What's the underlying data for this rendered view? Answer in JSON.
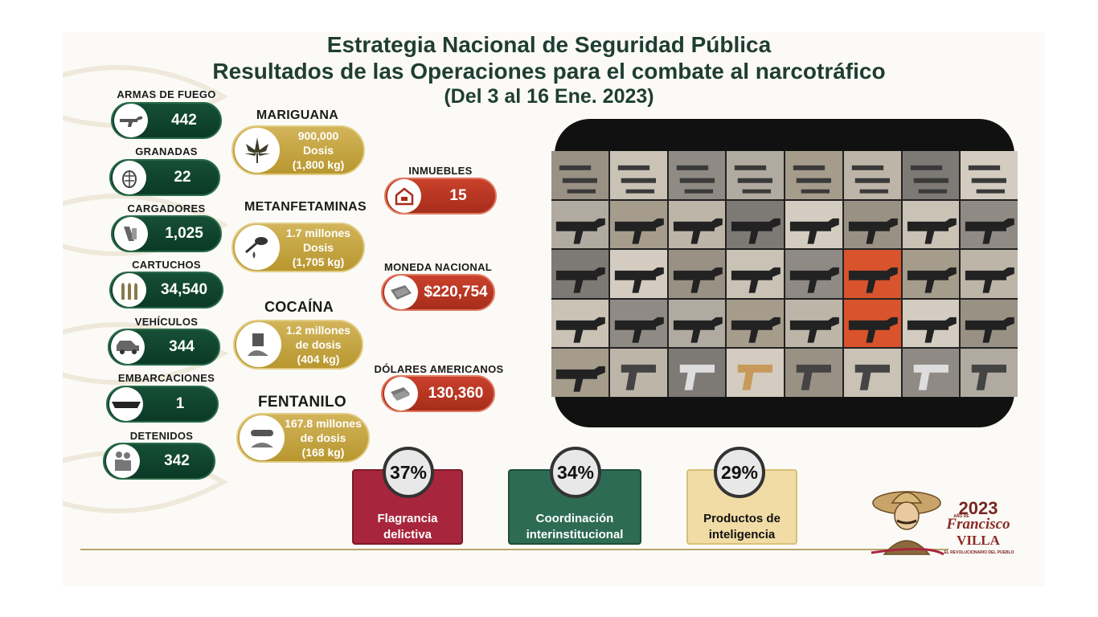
{
  "header": {
    "title": "Estrategia Nacional de Seguridad Pública",
    "subtitle": "Resultados de las Operaciones para el combate al narcotráfico",
    "period": "(Del 3 al 16 Ene. 2023)"
  },
  "left_stats": [
    {
      "label": "ARMAS DE FUEGO",
      "value": "442",
      "icon": "rifle-icon"
    },
    {
      "label": "GRANADAS",
      "value": "22",
      "icon": "grenade-icon"
    },
    {
      "label": "CARGADORES",
      "value": "1,025",
      "icon": "magazine-icon"
    },
    {
      "label": "CARTUCHOS",
      "value": "34,540",
      "icon": "bullets-icon"
    },
    {
      "label": "VEHÍCULOS",
      "value": "344",
      "icon": "vehicle-icon"
    },
    {
      "label": "EMBARCACIONES",
      "value": "1",
      "icon": "boat-icon"
    },
    {
      "label": "DETENIDOS",
      "value": "342",
      "icon": "people-icon"
    }
  ],
  "drugs": [
    {
      "label": "MARIGUANA",
      "lines": [
        "900,000",
        "Dosis",
        "(1,800 kg)"
      ],
      "icon": "cannabis-leaf-icon"
    },
    {
      "label": "METANFETAMINAS",
      "lines": [
        "1.7 millones",
        "Dosis",
        "(1,705 kg)"
      ],
      "icon": "spoon-icon"
    },
    {
      "label": "COCAÍNA",
      "lines": [
        "1.2 millones",
        "de dosis",
        "(404 kg)"
      ],
      "icon": "powder-icon"
    },
    {
      "label": "FENTANILO",
      "lines": [
        "167.8 millones",
        "de dosis",
        "(168 kg)"
      ],
      "icon": "fentanyl-icon"
    }
  ],
  "assets": [
    {
      "label": "INMUEBLES",
      "value": "15",
      "icon": "house-icon"
    },
    {
      "label": "MONEDA NACIONAL",
      "value": "$220,754",
      "icon": "cash-icon"
    },
    {
      "label": "DÓLARES AMERICANOS",
      "value": "130,360",
      "icon": "dollars-icon"
    }
  ],
  "cards": [
    {
      "percent": "37%",
      "lines": [
        "Flagrancia",
        "delictiva"
      ],
      "color": "#a8263d"
    },
    {
      "percent": "34%",
      "lines": [
        "Coordinación",
        "interinstitucional"
      ],
      "color": "#2d6b54"
    },
    {
      "percent": "29%",
      "lines": [
        "Productos de",
        "inteligencia"
      ],
      "color": "#f1dca5"
    }
  ],
  "logo": {
    "year": "2023",
    "small": "AÑO DE",
    "name1": "Francisco",
    "name2": "VILLA",
    "tagline": "EL REVOLUCIONARIO DEL PUEBLO"
  },
  "colors": {
    "green": "#0f4a31",
    "gold": "#c6a544",
    "red": "#b8341f",
    "title": "#1f3d33"
  }
}
